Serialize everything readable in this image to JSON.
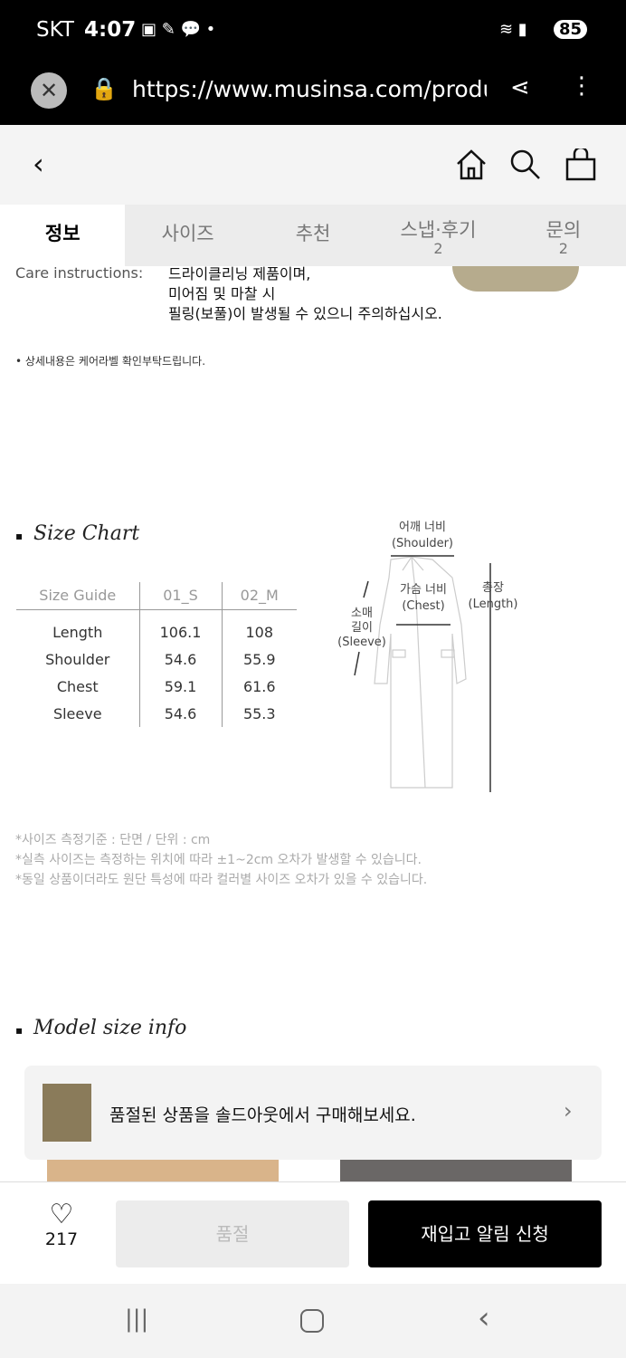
{
  "status": {
    "carrier": "SKT",
    "time": "4:07",
    "battery": "85"
  },
  "browser": {
    "url": "https://www.musinsa.com/produ"
  },
  "tabs": [
    {
      "label": "정보"
    },
    {
      "label": "사이즈"
    },
    {
      "label": "추천"
    },
    {
      "label": "스냅·후기",
      "count": "2"
    },
    {
      "label": "문의",
      "count": "2"
    }
  ],
  "care": {
    "label": "Care instructions:",
    "lines": [
      "드라이클리닝 제품이며,",
      "미어짐 및 마찰 시",
      "필링(보풀)이 발생될 수 있으니 주의하십시오."
    ],
    "note": "• 상세내용은 케어라벨 확인부탁드립니다."
  },
  "size_chart": {
    "title": "Size Chart",
    "headers": [
      "Size Guide",
      "01_S",
      "02_M"
    ],
    "rows": [
      [
        "Length",
        "106.1",
        "108"
      ],
      [
        "Shoulder",
        "54.6",
        "55.9"
      ],
      [
        "Chest",
        "59.1",
        "61.6"
      ],
      [
        "Sleeve",
        "54.6",
        "55.3"
      ]
    ],
    "diagram": {
      "shoulder": [
        "어깨 너비",
        "(Shoulder)"
      ],
      "chest": [
        "가슴 너비",
        "(Chest)"
      ],
      "length": [
        "총장",
        "(Length)"
      ],
      "sleeve": [
        "소매",
        "길이",
        "(Sleeve)"
      ]
    },
    "notes": [
      "*사이즈 측정기준 : 단면 / 단위 : cm",
      "*실측 사이즈는 측정하는 위치에 따라 ±1~2cm 오차가 발생할 수 있습니다.",
      "*동일 상품이더라도 원단 특성에 따라 컬러별 사이즈 오차가 있을 수 있습니다."
    ]
  },
  "model": {
    "title": "Model size info"
  },
  "banner": {
    "text": "품절된 상품을 솔드아웃에서 구매해보세요."
  },
  "bottom": {
    "likes": "217",
    "soldout": "품절",
    "restock": "재입고 알림 신청"
  }
}
